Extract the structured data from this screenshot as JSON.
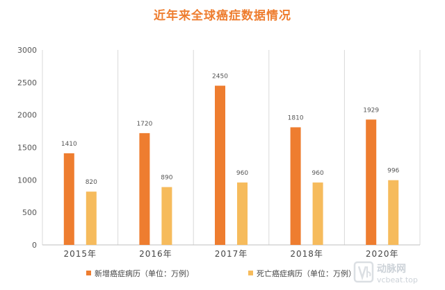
{
  "chart_data": {
    "type": "bar",
    "title": "近年来全球癌症数据情况",
    "categories": [
      "2015年",
      "2016年",
      "2017年",
      "2018年",
      "2020年"
    ],
    "series": [
      {
        "name": "新增癌症病历（单位：万例）",
        "values": [
          1410,
          1720,
          2450,
          1810,
          1929
        ],
        "color": "#ee7d2f"
      },
      {
        "name": "死亡癌症病历（单位：万例）",
        "values": [
          820,
          890,
          960,
          960,
          996
        ],
        "color": "#f6bb5c"
      }
    ],
    "yticks": [
      0,
      500,
      1000,
      1500,
      2000,
      2500,
      3000
    ],
    "ylim": [
      0,
      3000
    ],
    "xlabel": "",
    "ylabel": "",
    "grid": "vertical category separators",
    "legend_position": "bottom"
  },
  "watermark": {
    "brand": "动脉网",
    "url": "vcbeat.top",
    "icon": "vb-logo-icon"
  }
}
